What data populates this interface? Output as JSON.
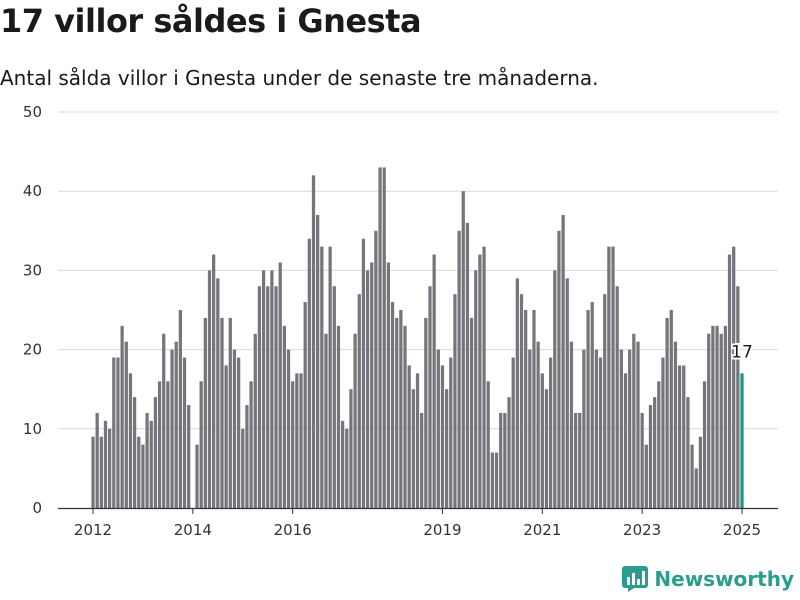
{
  "title": "17 villor såldes i Gnesta",
  "subtitle": "Antal sålda villor i Gnesta under de senaste tre månaderna.",
  "brand": {
    "name": "Newsworthy",
    "icon": "bar-chart-logo-icon"
  },
  "colors": {
    "bar": "#76757b",
    "highlight": "#1c958d",
    "grid": "#d9d9d9",
    "axis": "#333333",
    "brand": "#2a9d8f"
  },
  "chart_data": {
    "type": "bar",
    "x_start": "2012-01",
    "x_end": "2025-01",
    "frequency": "monthly",
    "ylim": [
      0,
      50
    ],
    "yticks": [
      "0",
      "10",
      "20",
      "30",
      "40",
      "50"
    ],
    "xticks": [
      "2012",
      "2014",
      "2016",
      "2019",
      "2021",
      "2023",
      "2025"
    ],
    "grid": true,
    "values": [
      9,
      12,
      9,
      11,
      10,
      19,
      19,
      23,
      21,
      17,
      14,
      9,
      8,
      12,
      11,
      14,
      16,
      22,
      16,
      20,
      21,
      25,
      19,
      13,
      0,
      8,
      16,
      24,
      30,
      32,
      29,
      24,
      18,
      24,
      20,
      19,
      10,
      13,
      16,
      22,
      28,
      30,
      28,
      30,
      28,
      31,
      23,
      20,
      16,
      17,
      17,
      26,
      34,
      42,
      37,
      33,
      22,
      33,
      28,
      23,
      11,
      10,
      15,
      22,
      27,
      34,
      30,
      31,
      35,
      43,
      43,
      31,
      26,
      24,
      25,
      23,
      18,
      15,
      17,
      12,
      24,
      28,
      32,
      20,
      18,
      15,
      19,
      27,
      35,
      40,
      36,
      24,
      30,
      32,
      33,
      16,
      7,
      7,
      12,
      12,
      14,
      19,
      29,
      27,
      25,
      20,
      25,
      21,
      17,
      15,
      19,
      30,
      35,
      37,
      29,
      21,
      12,
      12,
      20,
      25,
      26,
      20,
      19,
      27,
      33,
      33,
      28,
      20,
      17,
      20,
      22,
      21,
      12,
      8,
      13,
      14,
      16,
      19,
      24,
      25,
      21,
      18,
      18,
      14,
      8,
      5,
      9,
      16,
      22,
      23,
      23,
      22,
      23,
      32,
      33,
      28,
      17
    ],
    "highlight_last": true,
    "data_labels": [
      {
        "index": 156,
        "label": "17"
      }
    ]
  }
}
